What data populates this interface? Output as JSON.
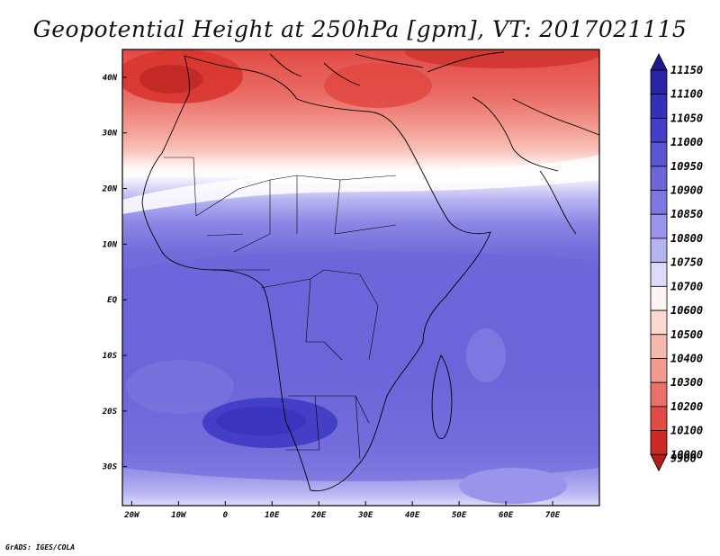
{
  "title": "Geopotential Height at 250hPa [gpm], VT: 2017021115",
  "credit": "GrADS: IGES/COLA",
  "map": {
    "type": "filled-contour-map",
    "variable": "Geopotential Height",
    "level": "250hPa",
    "units": "gpm",
    "lon_range": [
      -22,
      80
    ],
    "lat_range": [
      -37,
      45
    ],
    "lon_ticks": [
      "20W",
      "10W",
      "0",
      "10E",
      "20E",
      "30E",
      "40E",
      "50E",
      "60E",
      "70E"
    ],
    "lon_tick_values": [
      -20,
      -10,
      0,
      10,
      20,
      30,
      40,
      50,
      60,
      70
    ],
    "lat_ticks": [
      "40N",
      "30N",
      "20N",
      "10N",
      "EQ",
      "10S",
      "20S",
      "30S"
    ],
    "lat_tick_values": [
      40,
      30,
      20,
      10,
      0,
      -10,
      -20,
      -30
    ],
    "colorbar": {
      "levels": [
        "11150",
        "11100",
        "11050",
        "11000",
        "10950",
        "10900",
        "10850",
        "10800",
        "10750",
        "10700",
        "10600",
        "10500",
        "10400",
        "10300",
        "10200",
        "10100",
        "10000",
        "9900"
      ],
      "colors": [
        "#1e1a8e",
        "#2a24a6",
        "#3530b8",
        "#433fc6",
        "#5a55d2",
        "#6c66da",
        "#7d78e0",
        "#9a95ea",
        "#b6b3f2",
        "#dcdbf8",
        "#fff4f2",
        "#fbd8d2",
        "#f6b8ae",
        "#f29a90",
        "#e9716a",
        "#e04b44",
        "#c92a24",
        "#b01e1a"
      ]
    }
  }
}
